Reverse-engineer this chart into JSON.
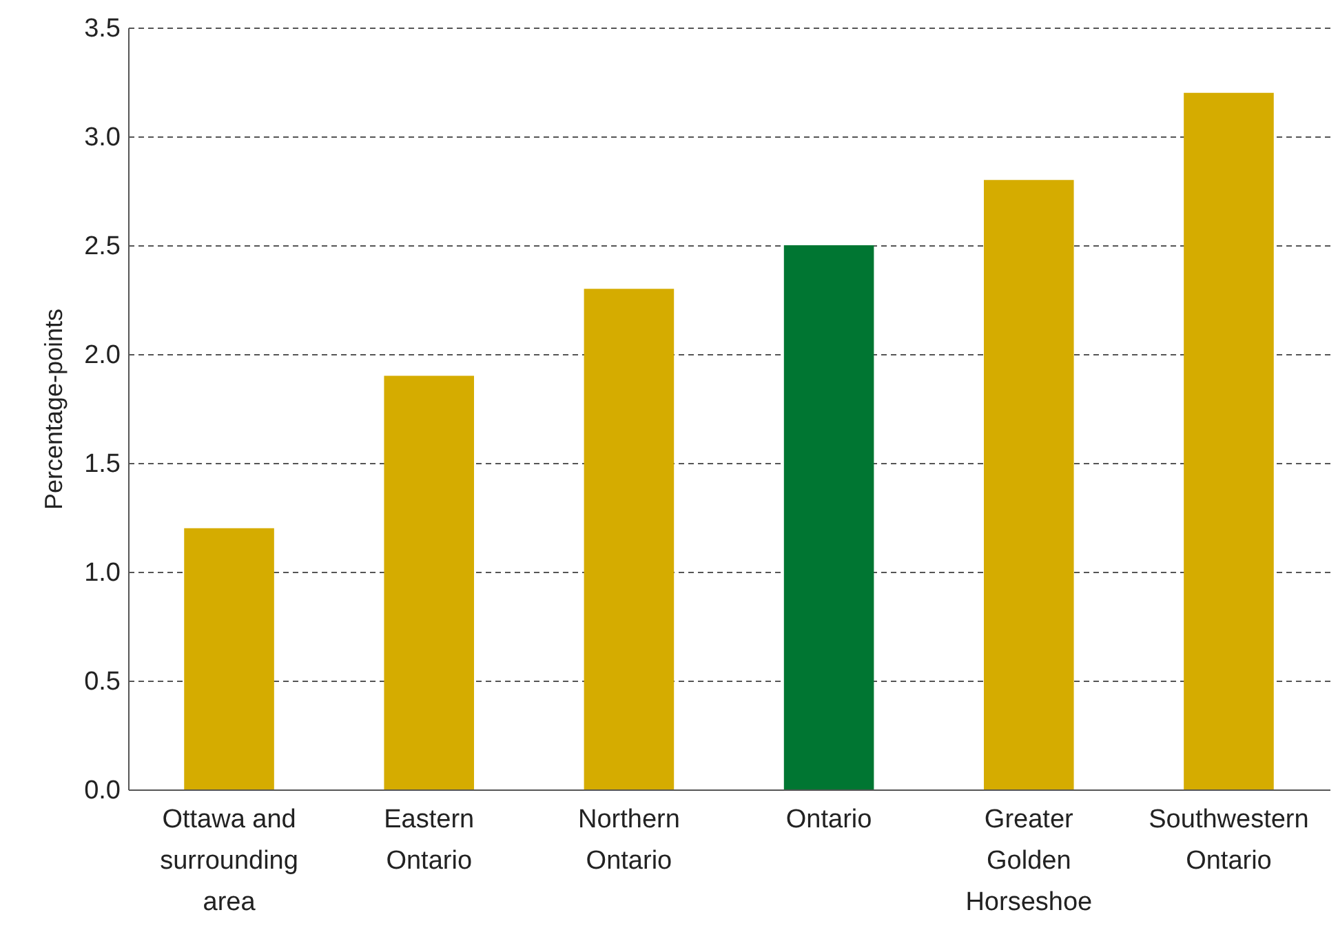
{
  "chart_data": {
    "type": "bar",
    "ylabel": "Percentage-points",
    "categories": [
      "Ottawa and surrounding area",
      "Eastern Ontario",
      "Northern Ontario",
      "Ontario",
      "Greater Golden Horseshoe",
      "Southwestern Ontario"
    ],
    "values": [
      1.2,
      1.9,
      2.3,
      2.5,
      2.8,
      3.2
    ],
    "colors": [
      "#d5ac00",
      "#d5ac00",
      "#d5ac00",
      "#007632",
      "#d5ac00",
      "#d5ac00"
    ],
    "ylim": [
      0,
      3.5
    ],
    "yticks": [
      {
        "value": 0,
        "label": "0.0"
      },
      {
        "value": 0.5,
        "label": "0.5"
      },
      {
        "value": 1,
        "label": "1.0"
      },
      {
        "value": 1.5,
        "label": "1.5"
      },
      {
        "value": 2,
        "label": "2.0"
      },
      {
        "value": 2.5,
        "label": "2.5"
      },
      {
        "value": 3,
        "label": "3.0"
      },
      {
        "value": 3.5,
        "label": "3.5"
      }
    ],
    "grid": "y",
    "legend": false
  }
}
